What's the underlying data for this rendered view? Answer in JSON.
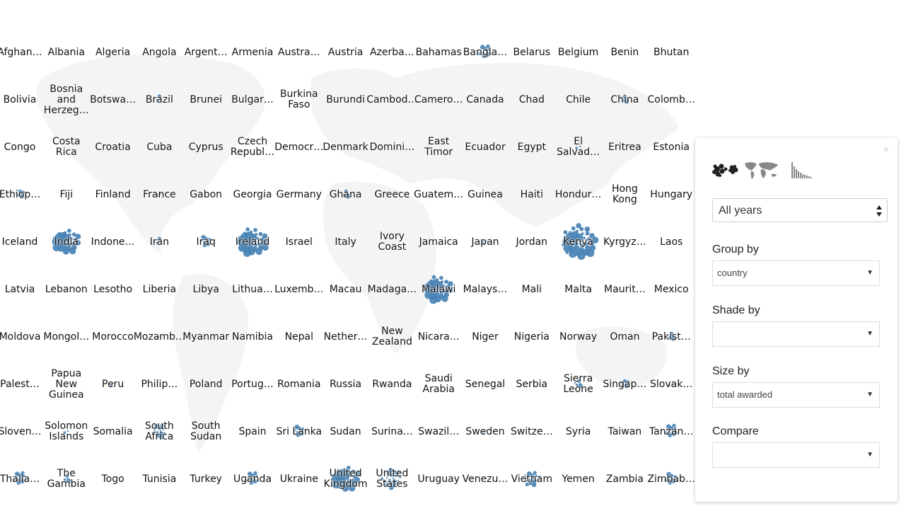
{
  "colors": {
    "bubble": "#4682b4",
    "map": "#f4f4f4"
  },
  "countries": [
    "Afghan…",
    "Albania",
    "Algeria",
    "Angola",
    "Argent…",
    "Armenia",
    "Austra…",
    "Austria",
    "Azerba…",
    "Bahamas",
    "Bangla…",
    "Belarus",
    "Belgium",
    "Benin",
    "Bhutan",
    "Bolivia",
    "Bosnia and Herzeg…",
    "Botswa…",
    "Brazil",
    "Brunei",
    "Bulgar…",
    "Burkina Faso",
    "Burundi",
    "Cambod…",
    "Camero…",
    "Canada",
    "Chad",
    "Chile",
    "China",
    "Colomb…",
    "Congo",
    "Costa Rica",
    "Croatia",
    "Cuba",
    "Cyprus",
    "Czech Republ…",
    "Democr…",
    "Denmark",
    "Domini…",
    "East Timor",
    "Ecuador",
    "Egypt",
    "El Salvad…",
    "Eritrea",
    "Estonia",
    "Ethiop…",
    "Fiji",
    "Finland",
    "France",
    "Gabon",
    "Georgia",
    "Germany",
    "Ghana",
    "Greece",
    "Guatem…",
    "Guinea",
    "Haiti",
    "Hondur…",
    "Hong Kong",
    "Hungary",
    "Iceland",
    "India",
    "Indone…",
    "Iran",
    "Iraq",
    "Ireland",
    "Israel",
    "Italy",
    "Ivory Coast",
    "Jamaica",
    "Japan",
    "Jordan",
    "Kenya",
    "Kyrgyz…",
    "Laos",
    "Latvia",
    "Lebanon",
    "Lesotho",
    "Liberia",
    "Libya",
    "Lithua…",
    "Luxemb…",
    "Macau",
    "Madaga…",
    "Malawi",
    "Malays…",
    "Mali",
    "Malta",
    "Maurit…",
    "Mexico",
    "Moldova",
    "Mongol…",
    "Morocco",
    "Mozamb…",
    "Myanmar",
    "Namibia",
    "Nepal",
    "Nether…",
    "New Zealand",
    "Nicara…",
    "Niger",
    "Nigeria",
    "Norway",
    "Oman",
    "Pakist…",
    "Palest…",
    "Papua New Guinea",
    "Peru",
    "Philip…",
    "Poland",
    "Portug…",
    "Romania",
    "Russia",
    "Rwanda",
    "Saudi Arabia",
    "Senegal",
    "Serbia",
    "Sierra Leone",
    "Singap…",
    "Slovak…",
    "Sloven…",
    "Solomon Islands",
    "Somalia",
    "South Africa",
    "South Sudan",
    "Spain",
    "Sri Lanka",
    "Sudan",
    "Surina…",
    "Swazil…",
    "Sweden",
    "Switze…",
    "Syria",
    "Taiwan",
    "Tanzan…",
    "Thaila…",
    "The Gambia",
    "Togo",
    "Tunisia",
    "Turkey",
    "Uganda",
    "Ukraine",
    "United Kingdom",
    "United States",
    "Uruguay",
    "Venezu…",
    "Vietnam",
    "Yemen",
    "Zambia",
    "Zimbab…"
  ],
  "bubble_levels": {
    "Bangla…": 0.3,
    "Brazil": 0.08,
    "China": 0.12,
    "El Salvad…": 0.06,
    "Ethiop…": 0.15,
    "France": 0.05,
    "Ghana": 0.12,
    "India": 0.7,
    "Iran": 0.08,
    "Iraq": 0.2,
    "Ireland": 0.8,
    "Japan": 0.05,
    "Kenya": 1.0,
    "Malawi": 0.75,
    "Pakist…": 0.1,
    "Peru": 0.06,
    "Sierra Leone": 0.12,
    "Singap…": 0.15,
    "Slovak…": 0.05,
    "Solomon Islands": 0.05,
    "South Africa": 0.35,
    "Sri Lanka": 0.2,
    "Sweden": 0.05,
    "Tanzan…": 0.3,
    "Thaila…": 0.3,
    "The Gambia": 0.1,
    "Uganda": 0.3,
    "United Kingdom": 0.7,
    "United States": 0.55,
    "Vietnam": 0.4,
    "Zimbab…": 0.25,
    "Mozamb…": 0.04
  },
  "panel": {
    "close_icon": "×",
    "view_tabs": [
      "bubbles-view",
      "map-view",
      "bar-chart-view"
    ],
    "years": "All years",
    "group_by": {
      "label": "Group by",
      "value": "country"
    },
    "shade_by": {
      "label": "Shade by",
      "value": ""
    },
    "size_by": {
      "label": "Size by",
      "value": "total awarded"
    },
    "compare": {
      "label": "Compare",
      "value": ""
    }
  }
}
